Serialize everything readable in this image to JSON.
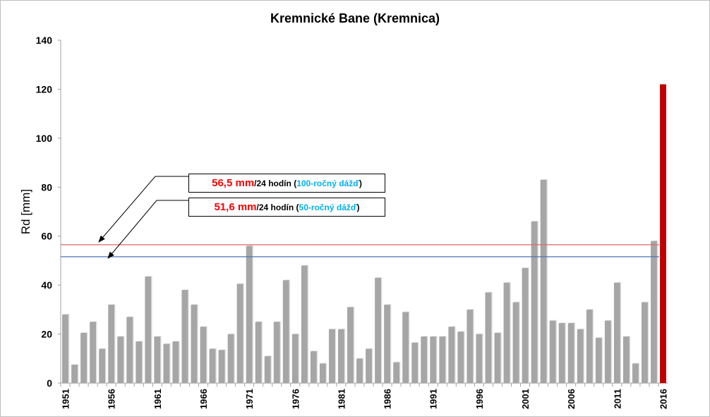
{
  "chart_data": {
    "type": "bar",
    "title": "Kremnické Bane (Kremnica)",
    "xlabel": "",
    "ylabel": "Rd [mm]",
    "ylim": [
      0,
      140
    ],
    "yticks": [
      0,
      20,
      40,
      60,
      80,
      100,
      120,
      140
    ],
    "xtick_labels": [
      "1951",
      "1956",
      "1961",
      "1966",
      "1971",
      "1976",
      "1981",
      "1986",
      "1991",
      "1996",
      "2001",
      "2006",
      "2011",
      "2016"
    ],
    "categories": [
      1951,
      1952,
      1953,
      1954,
      1955,
      1956,
      1957,
      1958,
      1959,
      1960,
      1961,
      1962,
      1963,
      1964,
      1965,
      1966,
      1967,
      1968,
      1969,
      1970,
      1971,
      1972,
      1973,
      1974,
      1975,
      1976,
      1977,
      1978,
      1979,
      1980,
      1981,
      1982,
      1983,
      1984,
      1985,
      1986,
      1987,
      1988,
      1989,
      1990,
      1991,
      1992,
      1993,
      1994,
      1995,
      1996,
      1997,
      1998,
      1999,
      2000,
      2001,
      2002,
      2003,
      2004,
      2005,
      2006,
      2007,
      2008,
      2009,
      2010,
      2011,
      2012,
      2013,
      2014,
      2015,
      2016
    ],
    "values": [
      28,
      7.5,
      20.5,
      25,
      14,
      32,
      19,
      27,
      17,
      43.5,
      19,
      16,
      17,
      38,
      32,
      23,
      14,
      13.5,
      20,
      40.5,
      56,
      25,
      11,
      25,
      42,
      20,
      48,
      13,
      8,
      22,
      22,
      31,
      10,
      14,
      43,
      32,
      8.5,
      29,
      16.5,
      19,
      19,
      19,
      23,
      21,
      30,
      20,
      37,
      20.5,
      41,
      33,
      47,
      66,
      83,
      25.5,
      24.5,
      24.5,
      22,
      30,
      18.5,
      25.5,
      41,
      19,
      8,
      33,
      58,
      122
    ],
    "bar_color": "#a6a6a6",
    "highlight_color": "#c00000",
    "highlight_category": 2016,
    "reference_lines": [
      {
        "value": 56.5,
        "color": "#e06666",
        "value_text": "56,5 mm",
        "unit_text": "/24 hodín",
        "open": "(",
        "period_text": "100-ročný dážď",
        "close": ")"
      },
      {
        "value": 51.6,
        "color": "#4a72b8",
        "value_text": "51,6 mm",
        "unit_text": "/24 hodín",
        "open": "(",
        "period_text": "50-ročný dážď",
        "close": ")"
      }
    ],
    "grid": false,
    "legend": "none"
  }
}
